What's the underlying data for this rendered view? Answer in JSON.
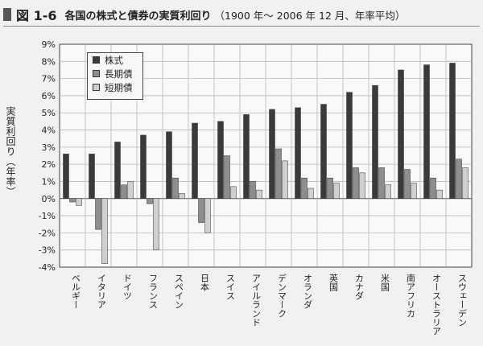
{
  "figure": {
    "label": "図 1-6",
    "title": "各国の株式と債券の実質利回り",
    "subtitle": "（1900 年～ 2006 年 12 月、年率平均）"
  },
  "chart_data": {
    "type": "bar",
    "ylabel": "実質利回り（年率）",
    "ylim": [
      -4,
      9
    ],
    "yticks": [
      "9%",
      "8%",
      "7%",
      "6%",
      "5%",
      "4%",
      "3%",
      "2%",
      "1%",
      "0%",
      "-1%",
      "-2%",
      "-3%",
      "-4%"
    ],
    "grid": true,
    "legend_position": "top-left",
    "categories": [
      "ベルギー",
      "イタリア",
      "ドイツ",
      "フランス",
      "スペイン",
      "日本",
      "スイス",
      "アイルランド",
      "デンマーク",
      "オランダ",
      "英国",
      "カナダ",
      "米国",
      "南アフリカ",
      "オーストラリア",
      "スウェーデン"
    ],
    "series": [
      {
        "name": "株式",
        "color": "#3a3a3a",
        "values": [
          2.6,
          2.6,
          3.3,
          3.7,
          3.9,
          4.4,
          4.5,
          4.9,
          5.2,
          5.3,
          5.5,
          6.2,
          6.6,
          7.5,
          7.8,
          7.9
        ]
      },
      {
        "name": "長期債",
        "color": "#8e8e8e",
        "values": [
          -0.2,
          -1.8,
          0.8,
          -0.3,
          1.2,
          -1.4,
          2.5,
          1.0,
          2.9,
          1.2,
          1.2,
          1.8,
          1.8,
          1.7,
          1.2,
          2.3
        ]
      },
      {
        "name": "短期債",
        "color": "#cfcfcf",
        "values": [
          -0.4,
          -3.8,
          1.0,
          -3.0,
          0.3,
          -2.0,
          0.7,
          0.5,
          2.2,
          0.6,
          0.9,
          1.5,
          0.8,
          0.9,
          0.5,
          1.8
        ]
      }
    ]
  }
}
